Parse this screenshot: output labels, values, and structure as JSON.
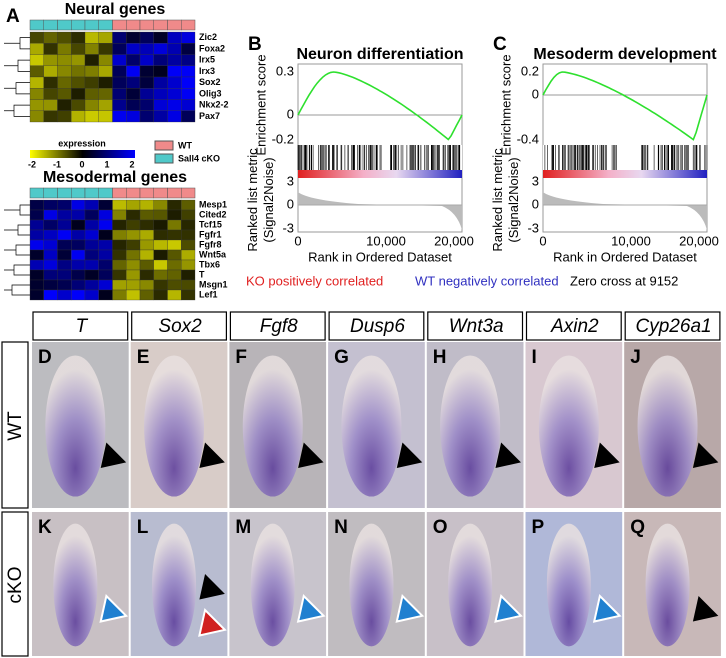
{
  "panel_a": {
    "label": "A",
    "neural_title": "Neural genes",
    "neural_genes": [
      "Zic2",
      "Foxa2",
      "Irx5",
      "Irx3",
      "Sox2",
      "Olig3",
      "Nkx2-2",
      "Pax7"
    ],
    "legend_title": "expression",
    "colorbar_ticks": [
      "-2",
      "-1",
      "0",
      "1",
      "2"
    ],
    "legend_wt": "WT",
    "legend_cko": "Sall4 cKO",
    "meso_title": "Mesodermal genes",
    "meso_genes": [
      "Mesp1",
      "Cited2",
      "Tcf15",
      "Fgfr1",
      "Fgfr8",
      "Wnt5a",
      "Tbx6",
      "T",
      "Msgn1",
      "Lef1"
    ]
  },
  "gsea": [
    {
      "label": "B",
      "title": "Neuron differentiation",
      "es_label": "Enrichment score",
      "metric_label": "Ranked list metric (Signal2Noise)",
      "es_ticks": [
        "0.3",
        "0",
        "-0.2"
      ],
      "metric_ticks": [
        "3",
        "0",
        "-3"
      ],
      "x_ticks": [
        "0",
        "10,000",
        "20,000"
      ],
      "x_label": "Rank in Ordered Dataset"
    },
    {
      "label": "C",
      "title": "Mesoderm development",
      "es_label": "Enrichment score",
      "metric_label": "Ranked list metric (Signal2Noise)",
      "es_ticks": [
        "0.2",
        "0",
        "-0.4"
      ],
      "metric_ticks": [
        "3",
        "0",
        "-3"
      ],
      "x_ticks": [
        "0",
        "10,000",
        "20,000"
      ],
      "x_label": "Rank in Ordered Dataset"
    }
  ],
  "footer": {
    "ko": "KO positively correlated",
    "wt": "WT negatively correlated",
    "zero": "Zero cross at 9152"
  },
  "genes": [
    "T",
    "Sox2",
    "Fgf8",
    "Dusp6",
    "Wnt3a",
    "Axin2",
    "Cyp26a1"
  ],
  "rows": [
    "WT",
    "cKO"
  ],
  "image_labels": [
    [
      "D",
      "E",
      "F",
      "G",
      "H",
      "I",
      "J"
    ],
    [
      "K",
      "L",
      "M",
      "N",
      "O",
      "P",
      "Q"
    ]
  ]
}
